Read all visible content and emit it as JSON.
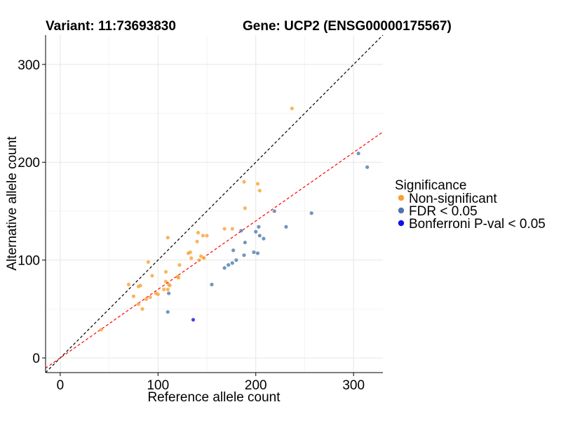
{
  "chart_data": {
    "type": "scatter",
    "title_left": "Variant: 11:73693830",
    "title_right": "Gene: UCP2 (ENSG00000175567)",
    "xlabel": "Reference allele count",
    "ylabel": "Alternative allele count",
    "xlim": [
      -15,
      330
    ],
    "ylim": [
      -15,
      330
    ],
    "xticks": [
      0,
      100,
      200,
      300
    ],
    "yticks": [
      0,
      100,
      200,
      300
    ],
    "grid": true,
    "legend_position": "right",
    "legend": {
      "title": "Significance",
      "entries": [
        {
          "label": "Non-significant",
          "color": "#f7a033"
        },
        {
          "label": "FDR < 0.05",
          "color": "#4a78ad"
        },
        {
          "label": "Bonferroni P-val < 0.05",
          "color": "#1010f0"
        }
      ]
    },
    "reference_lines": [
      {
        "name": "identity",
        "slope": 1.0,
        "intercept": 0,
        "color": "#000000",
        "dash": true
      },
      {
        "name": "fit",
        "slope": 0.7,
        "intercept": 0,
        "color": "#ff0000",
        "dash": true
      }
    ],
    "series": [
      {
        "name": "Non-significant",
        "color": "#f7a033",
        "points": [
          [
            42,
            29
          ],
          [
            70,
            75
          ],
          [
            75,
            63
          ],
          [
            80,
            73
          ],
          [
            82,
            74
          ],
          [
            80,
            55
          ],
          [
            84,
            50
          ],
          [
            88,
            60
          ],
          [
            90,
            98
          ],
          [
            92,
            62
          ],
          [
            94,
            84
          ],
          [
            98,
            66
          ],
          [
            100,
            65
          ],
          [
            106,
            70
          ],
          [
            108,
            88
          ],
          [
            108,
            78
          ],
          [
            110,
            123
          ],
          [
            110,
            70
          ],
          [
            111,
            75
          ],
          [
            112,
            74
          ],
          [
            120,
            83
          ],
          [
            121,
            82
          ],
          [
            122,
            95
          ],
          [
            131,
            107
          ],
          [
            133,
            108
          ],
          [
            134,
            102
          ],
          [
            140,
            119
          ],
          [
            141,
            128
          ],
          [
            142,
            100
          ],
          [
            144,
            104
          ],
          [
            146,
            125
          ],
          [
            147,
            102
          ],
          [
            150,
            125
          ],
          [
            168,
            132
          ],
          [
            176,
            132
          ],
          [
            188,
            180
          ],
          [
            189,
            153
          ],
          [
            202,
            178
          ],
          [
            204,
            171
          ],
          [
            237,
            255
          ]
        ]
      },
      {
        "name": "FDR < 0.05",
        "color": "#4a78ad",
        "points": [
          [
            110,
            47
          ],
          [
            111,
            66
          ],
          [
            155,
            75
          ],
          [
            168,
            92
          ],
          [
            172,
            95
          ],
          [
            176,
            97
          ],
          [
            177,
            110
          ],
          [
            180,
            100
          ],
          [
            185,
            130
          ],
          [
            188,
            105
          ],
          [
            189,
            118
          ],
          [
            198,
            108
          ],
          [
            200,
            129
          ],
          [
            202,
            107
          ],
          [
            203,
            134
          ],
          [
            204,
            125
          ],
          [
            208,
            122
          ],
          [
            219,
            150
          ],
          [
            231,
            134
          ],
          [
            257,
            148
          ],
          [
            305,
            209
          ],
          [
            314,
            195
          ]
        ]
      },
      {
        "name": "Bonferroni P-val < 0.05",
        "color": "#1010f0",
        "points": [
          [
            136,
            39
          ]
        ]
      }
    ]
  }
}
